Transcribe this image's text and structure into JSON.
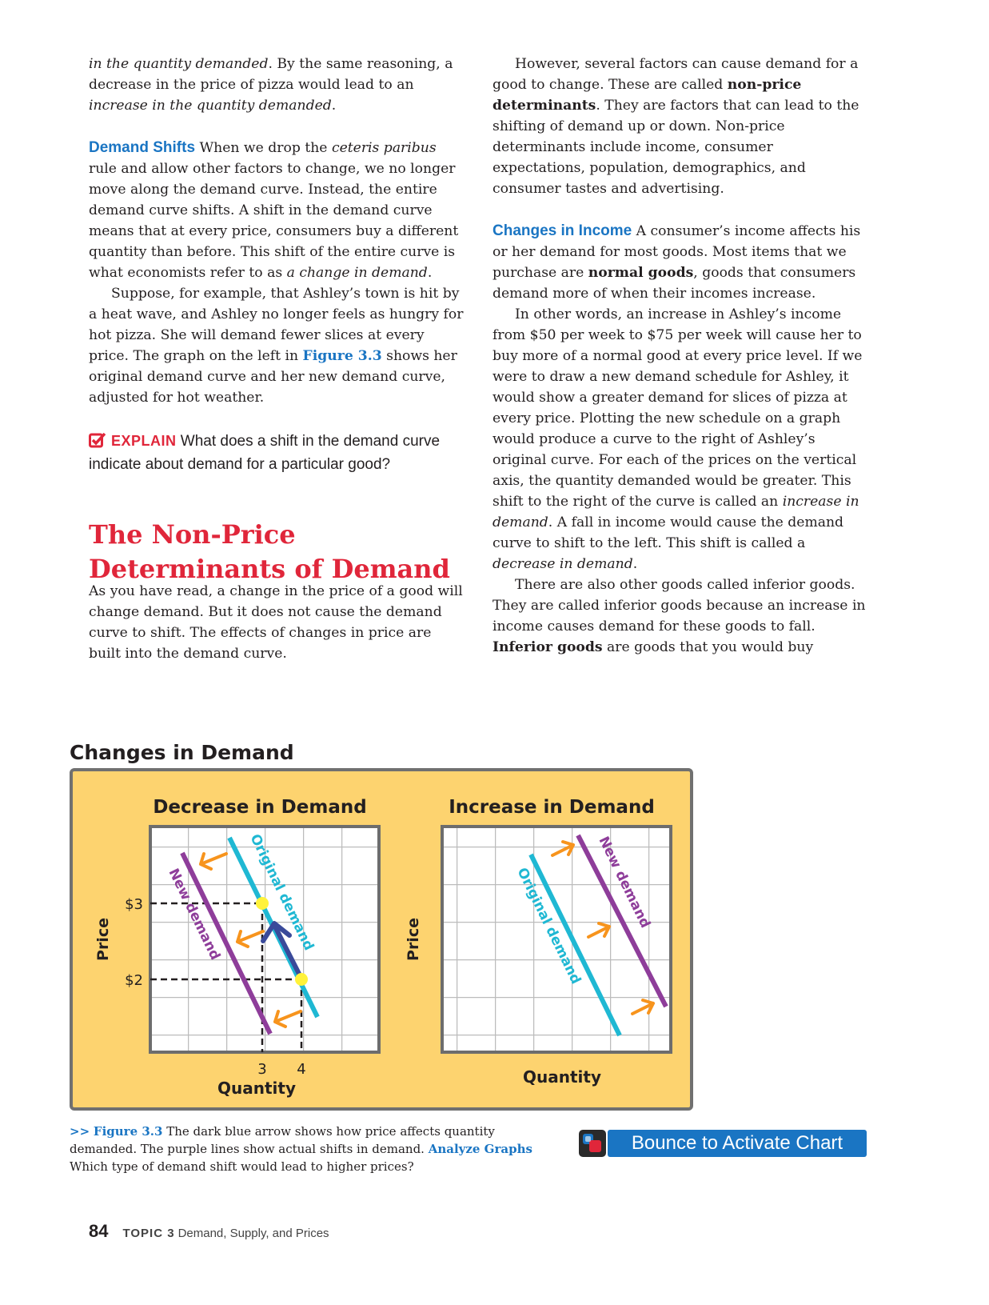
{
  "left_column": {
    "p1": {
      "t1": "in the quantity demanded",
      "t2": ". By the same reasoning, a decrease in the price of pizza would lead to an ",
      "t3": "increase in the quantity demanded",
      "t4": "."
    },
    "p2": {
      "label": "Demand Shifts",
      "t1": " When we drop the ",
      "t2": "ceteris paribus",
      "t3": " rule and allow other factors to change, we no longer move along the demand curve. Instead, the entire demand curve shifts. A shift in the demand curve means that at every price, consumers buy a different quantity than before. This shift of the entire curve is what economists refer to as ",
      "t4": "a change in demand",
      "t5": "."
    },
    "p3": {
      "t1": "Suppose, for example, that Ashley’s town is hit by a heat wave, and Ashley no longer feels as hungry for hot pizza. She will demand fewer slices at every price. The graph on the left in ",
      "fig": "Figure 3.3",
      "t2": " shows her original demand curve and her new demand curve, adjusted for hot weather."
    },
    "explain": {
      "label": "EXPLAIN",
      "text": " What does a shift in the demand curve indicate about demand for a particular good?"
    },
    "heading_line1": "The Non-Price",
    "heading_line2": "Determinants of Demand",
    "p4": "As you have read, a change in the price of a good will change demand. But it does not cause the demand curve to shift. The effects of changes in price are built into the demand curve."
  },
  "right_column": {
    "p1": {
      "t1": "However, several factors can cause demand for a good to change. These are called ",
      "bold": "non-price determinants",
      "t2": ". They are factors that can lead to the shifting of demand up or down. Non-price determinants include income, consumer expectations, population, demographics, and consumer tastes and advertising."
    },
    "p2": {
      "label": "Changes in Income",
      "t1": " A consumer’s income affects his or her demand for most goods. Most items that we purchase are ",
      "bold": "normal goods",
      "t2": ", goods that consumers demand more of when their incomes increase."
    },
    "p3": {
      "t1": "In other words, an increase in Ashley’s income from $50 per week to $75 per week will cause her to buy more of a normal good at every price level. If we were to draw a new demand schedule for Ashley, it would show a greater demand for slices of pizza at every price. Plotting the new schedule on a graph would produce a curve to the right of Ashley’s original curve. For each of the prices on the vertical axis, the quantity demanded would be greater. This shift to the right of the curve is called an ",
      "i1": "increase in demand",
      "t2": ". A fall in income would cause the demand curve to shift to the left. This shift is called a ",
      "i2": "decrease in demand",
      "t3": "."
    },
    "p4": {
      "t1": "There are also other goods called inferior goods. They are called inferior goods because an increase in income causes demand for these goods to fall. ",
      "bold": "Inferior goods",
      "t2": " are goods that you would buy"
    }
  },
  "figure": {
    "title": "Changes in Demand",
    "colors": {
      "background": "#fdd36f",
      "original_demand": "#1fb8d3",
      "new_demand": "#8e3d9a",
      "shift_arrow": "#f7941d",
      "price_arrow": "#3a4a9a",
      "point": "#fff23a"
    },
    "left": {
      "title": "Decrease in Demand",
      "y_label": "Price",
      "x_label": "Quantity",
      "y_ticks": [
        "$3",
        "$2"
      ],
      "x_ticks": [
        "3",
        "4"
      ],
      "original_label": "Original demand",
      "new_label": "New demand"
    },
    "right": {
      "title": "Increase in Demand",
      "y_label": "Price",
      "x_label": "Quantity",
      "original_label": "Original demand",
      "new_label": "New demand"
    }
  },
  "caption": {
    "arrows": ">>",
    "fig": "Figure 3.3",
    "t1": " The dark blue arrow shows how price affects quantity demanded. The purple lines show actual shifts in demand. ",
    "analyze": "Analyze Graphs",
    "t2": " Which type of demand shift would lead to higher prices?"
  },
  "bounce": {
    "label": "Bounce to Activate Chart"
  },
  "footer": {
    "page": "84",
    "topic": "TOPIC 3",
    "title": "Demand, Supply, and Prices"
  }
}
